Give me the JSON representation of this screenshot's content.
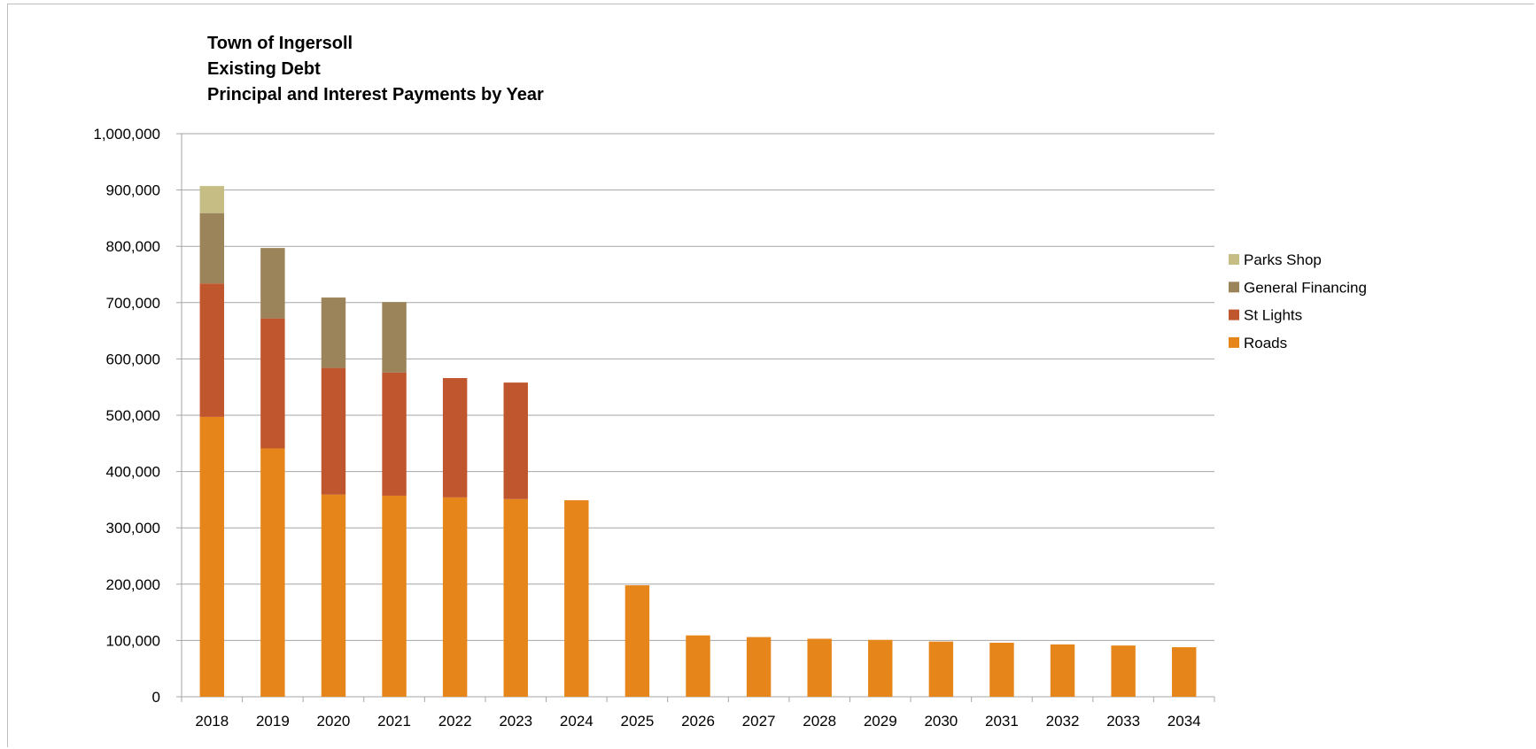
{
  "chart_data": {
    "type": "bar",
    "stacked": true,
    "title_lines": [
      "Town of Ingersoll",
      "Existing Debt",
      "Principal and Interest Payments by Year"
    ],
    "xlabel": "",
    "ylabel": "",
    "ylim": [
      0,
      1000000
    ],
    "y_ticks": [
      0,
      100000,
      200000,
      300000,
      400000,
      500000,
      600000,
      700000,
      800000,
      900000,
      1000000
    ],
    "y_tick_labels": [
      "0",
      "100,000",
      "200,000",
      "300,000",
      "400,000",
      "500,000",
      "600,000",
      "700,000",
      "800,000",
      "900,000",
      "1,000,000"
    ],
    "grid": "horizontal",
    "legend_position": "right",
    "categories": [
      "2018",
      "2019",
      "2020",
      "2021",
      "2022",
      "2023",
      "2024",
      "2025",
      "2026",
      "2027",
      "2028",
      "2029",
      "2030",
      "2031",
      "2032",
      "2033",
      "2034"
    ],
    "series": [
      {
        "name": "Roads",
        "color": "#e6861a",
        "values": [
          497000,
          441000,
          359000,
          357000,
          354000,
          351000,
          349000,
          198000,
          109000,
          106000,
          103000,
          101000,
          98000,
          96000,
          93000,
          91000,
          88000
        ]
      },
      {
        "name": "St Lights",
        "color": "#c0562e",
        "values": [
          237000,
          231000,
          225000,
          219000,
          212000,
          207000,
          0,
          0,
          0,
          0,
          0,
          0,
          0,
          0,
          0,
          0,
          0
        ]
      },
      {
        "name": "General Financing",
        "color": "#9c845a",
        "values": [
          125000,
          125000,
          125000,
          125000,
          0,
          0,
          0,
          0,
          0,
          0,
          0,
          0,
          0,
          0,
          0,
          0,
          0
        ]
      },
      {
        "name": "Parks Shop",
        "color": "#c6bd84",
        "values": [
          48000,
          0,
          0,
          0,
          0,
          0,
          0,
          0,
          0,
          0,
          0,
          0,
          0,
          0,
          0,
          0,
          0
        ]
      }
    ],
    "legend_order": [
      "Parks Shop",
      "General Financing",
      "St Lights",
      "Roads"
    ],
    "gridline_color": "#a6a6a6",
    "axis_color": "#a6a6a6"
  }
}
